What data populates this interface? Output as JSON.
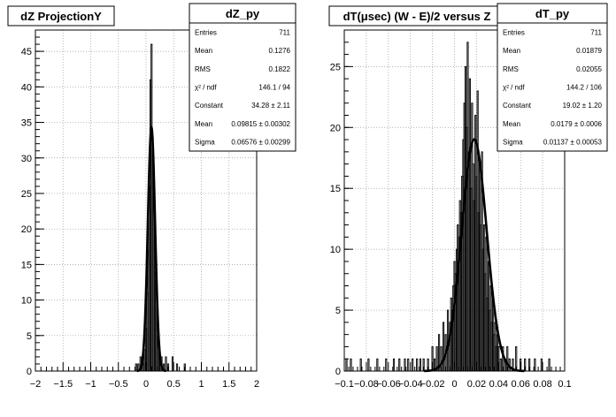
{
  "charts": [
    {
      "chart_data": {
        "type": "histogram",
        "title": "dZ ProjectionY",
        "xlim": [
          -2,
          2
        ],
        "ylim": [
          0,
          48
        ],
        "xticks": [
          -2,
          -1.5,
          -1,
          -0.5,
          0,
          0.5,
          1,
          1.5,
          2
        ],
        "xtick_labels": [
          "−2",
          "−1.5",
          "−1",
          "−0.5",
          "0",
          "0.5",
          "1",
          "1.5",
          "2"
        ],
        "yticks": [
          0,
          5,
          10,
          15,
          20,
          25,
          30,
          35,
          40,
          45
        ],
        "ytick_labels": [
          "0",
          "5",
          "10",
          "15",
          "20",
          "25",
          "30",
          "35",
          "40",
          "45"
        ],
        "bin_width": 0.02,
        "bins": [
          [
            -0.18,
            1
          ],
          [
            -0.14,
            1
          ],
          [
            -0.1,
            2
          ],
          [
            -0.06,
            1
          ],
          [
            -0.04,
            2
          ],
          [
            -0.02,
            3
          ],
          [
            0.0,
            6
          ],
          [
            0.02,
            11
          ],
          [
            0.04,
            17
          ],
          [
            0.06,
            26
          ],
          [
            0.08,
            41
          ],
          [
            0.1,
            46
          ],
          [
            0.12,
            33
          ],
          [
            0.14,
            28
          ],
          [
            0.16,
            21
          ],
          [
            0.18,
            14
          ],
          [
            0.2,
            9
          ],
          [
            0.22,
            5
          ],
          [
            0.24,
            3
          ],
          [
            0.26,
            2
          ],
          [
            0.28,
            2
          ],
          [
            0.32,
            1
          ],
          [
            0.36,
            2
          ],
          [
            0.4,
            1
          ],
          [
            0.48,
            2
          ],
          [
            0.56,
            1
          ],
          [
            0.7,
            1
          ]
        ],
        "fit": {
          "constant": 34.28,
          "mean": 0.09815,
          "sigma": 0.06576
        },
        "gridlines": true,
        "stats_box": {
          "title": "dZ_py",
          "rows": [
            {
              "label": "Entries",
              "value": "711"
            },
            {
              "label": "Mean",
              "value": "0.1276"
            },
            {
              "label": "RMS",
              "value": "0.1822"
            },
            {
              "label": "χ² / ndf",
              "value": "146.1 / 94"
            },
            {
              "label": "Constant",
              "value": "34.28 ± 2.11"
            },
            {
              "label": "Mean",
              "value": "0.09815 ± 0.00302"
            },
            {
              "label": "Sigma",
              "value": "0.06576 ± 0.00299"
            }
          ]
        }
      }
    },
    {
      "chart_data": {
        "type": "histogram",
        "title": "dT(μsec) (W - E)/2 versus Z",
        "xlim": [
          -0.1,
          0.1
        ],
        "ylim": [
          0,
          28
        ],
        "xticks": [
          -0.1,
          -0.08,
          -0.06,
          -0.04,
          -0.02,
          0,
          0.02,
          0.04,
          0.06,
          0.08,
          0.1
        ],
        "xtick_labels": [
          "−0.1",
          "−0.08",
          "−0.06",
          "−0.04",
          "−0.02",
          "0",
          "0.02",
          "0.04",
          "0.06",
          "0.08",
          "0.1"
        ],
        "yticks": [
          0,
          5,
          10,
          15,
          20,
          25
        ],
        "ytick_labels": [
          "0",
          "5",
          "10",
          "15",
          "20",
          "25"
        ],
        "bin_width": 0.001,
        "bins": [
          [
            -0.098,
            1
          ],
          [
            -0.094,
            1
          ],
          [
            -0.085,
            1
          ],
          [
            -0.078,
            1
          ],
          [
            -0.07,
            1
          ],
          [
            -0.062,
            1
          ],
          [
            -0.055,
            1
          ],
          [
            -0.05,
            1
          ],
          [
            -0.045,
            1
          ],
          [
            -0.042,
            1
          ],
          [
            -0.038,
            1
          ],
          [
            -0.034,
            1
          ],
          [
            -0.031,
            1
          ],
          [
            -0.028,
            1
          ],
          [
            -0.024,
            1
          ],
          [
            -0.02,
            2
          ],
          [
            -0.018,
            1
          ],
          [
            -0.016,
            2
          ],
          [
            -0.014,
            3
          ],
          [
            -0.012,
            2
          ],
          [
            -0.01,
            4
          ],
          [
            -0.008,
            3
          ],
          [
            -0.006,
            5
          ],
          [
            -0.004,
            4
          ],
          [
            -0.003,
            6
          ],
          [
            -0.002,
            5
          ],
          [
            -0.001,
            7
          ],
          [
            0.0,
            9
          ],
          [
            0.001,
            8
          ],
          [
            0.002,
            10
          ],
          [
            0.003,
            12
          ],
          [
            0.004,
            11
          ],
          [
            0.005,
            14
          ],
          [
            0.006,
            13
          ],
          [
            0.007,
            16
          ],
          [
            0.008,
            19
          ],
          [
            0.009,
            22
          ],
          [
            0.01,
            25
          ],
          [
            0.011,
            20
          ],
          [
            0.012,
            27
          ],
          [
            0.013,
            18
          ],
          [
            0.014,
            24
          ],
          [
            0.015,
            15
          ],
          [
            0.016,
            22
          ],
          [
            0.017,
            17
          ],
          [
            0.018,
            14
          ],
          [
            0.019,
            21
          ],
          [
            0.02,
            16
          ],
          [
            0.021,
            23
          ],
          [
            0.022,
            13
          ],
          [
            0.023,
            17
          ],
          [
            0.024,
            12
          ],
          [
            0.025,
            18
          ],
          [
            0.026,
            10
          ],
          [
            0.027,
            12
          ],
          [
            0.028,
            8
          ],
          [
            0.029,
            11
          ],
          [
            0.03,
            6
          ],
          [
            0.031,
            9
          ],
          [
            0.032,
            5
          ],
          [
            0.033,
            7
          ],
          [
            0.034,
            4
          ],
          [
            0.035,
            6
          ],
          [
            0.036,
            3
          ],
          [
            0.037,
            4
          ],
          [
            0.038,
            2
          ],
          [
            0.039,
            3
          ],
          [
            0.04,
            2
          ],
          [
            0.042,
            1
          ],
          [
            0.044,
            2
          ],
          [
            0.046,
            1
          ],
          [
            0.048,
            2
          ],
          [
            0.05,
            1
          ],
          [
            0.053,
            1
          ],
          [
            0.056,
            2
          ],
          [
            0.06,
            1
          ],
          [
            0.064,
            1
          ],
          [
            0.068,
            1
          ],
          [
            0.073,
            1
          ],
          [
            0.079,
            1
          ],
          [
            0.086,
            1
          ]
        ],
        "fit": {
          "constant": 19.02,
          "mean": 0.0179,
          "sigma": 0.01137
        },
        "gridlines": true,
        "stats_box": {
          "title": "dT_py",
          "rows": [
            {
              "label": "Entries",
              "value": "711"
            },
            {
              "label": "Mean",
              "value": "0.01879"
            },
            {
              "label": "RMS",
              "value": "0.02055"
            },
            {
              "label": "χ² / ndf",
              "value": "144.2 / 106"
            },
            {
              "label": "Constant",
              "value": "19.02 ± 1.20"
            },
            {
              "label": "Mean",
              "value": "0.0179 ± 0.0006"
            },
            {
              "label": "Sigma",
              "value": "0.01137 ± 0.00053"
            }
          ]
        }
      }
    }
  ]
}
